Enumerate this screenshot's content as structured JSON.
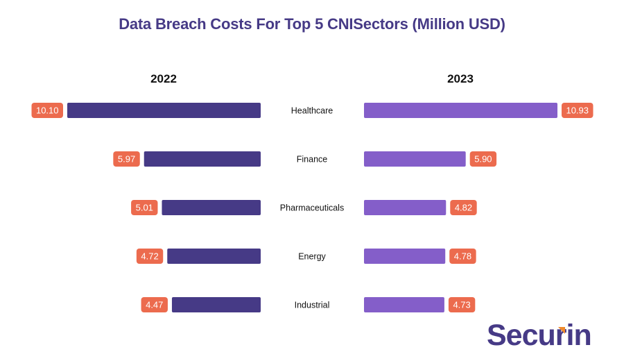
{
  "colors": {
    "title": "#463a86",
    "bar_2022": "#463a86",
    "bar_2023": "#845ec9",
    "label_bg": "#ec6b4e",
    "logo": "#463a86",
    "logo_accent": "#f08a2c"
  },
  "chart_data": {
    "type": "bar",
    "orientation": "horizontal-butterfly",
    "title": "Data Breach Costs For Top 5 CNISectors (Million USD)",
    "categories": [
      "Healthcare",
      "Finance",
      "Pharmaceuticals",
      "Energy",
      "Industrial"
    ],
    "series": [
      {
        "name": "2022",
        "values": [
          10.1,
          5.97,
          5.01,
          4.72,
          4.47
        ],
        "labels": [
          "10.10",
          "5.97",
          "5.01",
          "4.72",
          "4.47"
        ]
      },
      {
        "name": "2023",
        "values": [
          10.93,
          5.9,
          4.82,
          4.78,
          4.73
        ],
        "labels": [
          "10.93",
          "5.90",
          "4.82",
          "4.78",
          "4.73"
        ]
      }
    ],
    "xlabel": "",
    "ylabel": "",
    "grid": false,
    "legend": "none"
  },
  "logo": {
    "prefix": "Secu",
    "accent_letter": "r",
    "suffix": "in"
  }
}
